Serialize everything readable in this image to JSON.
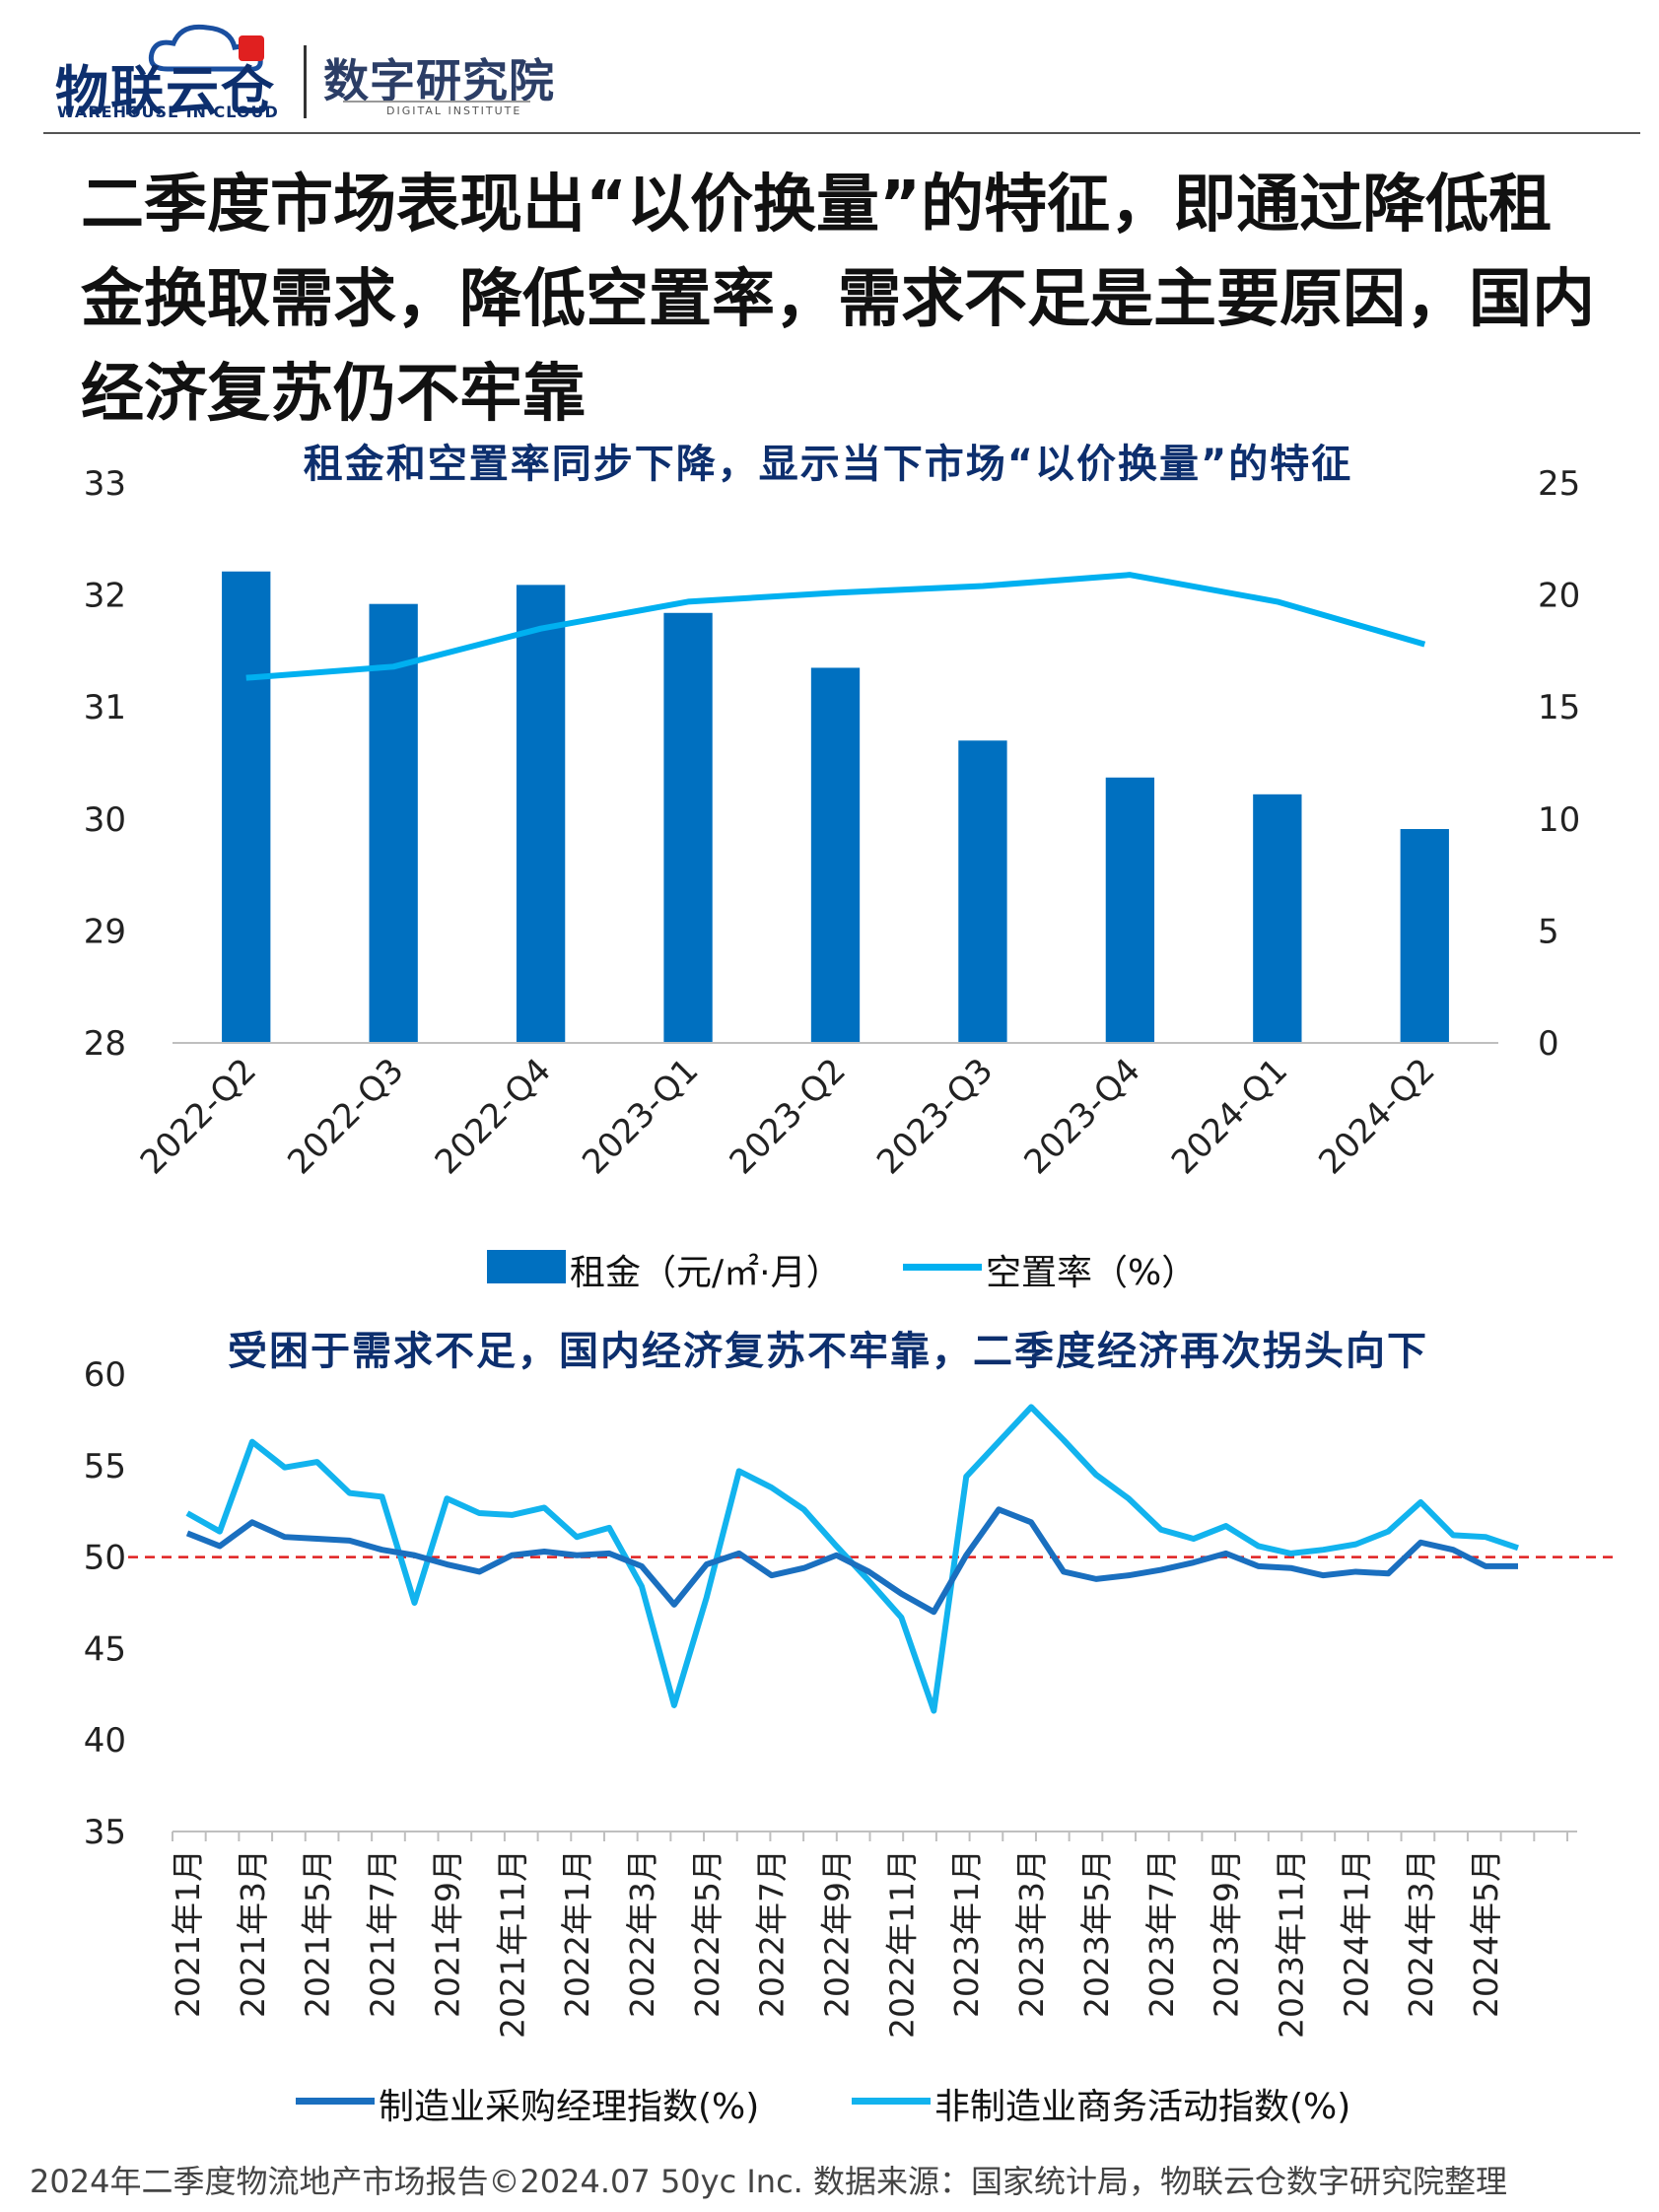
{
  "header": {
    "logo_main": "物联云仓",
    "logo_sub": "WAREHOUSE IN CLOUD",
    "logo2_main": "数字研究院",
    "logo2_sub": "DIGITAL INSTITUTE"
  },
  "headline": "二季度市场表现出“以价换量”的特征，即通过降低租金换取需求，降低空置率，需求不足是主要原因，国内经济复苏仍不牢靠",
  "footer": "2024年二季度物流地产市场报告©2024.07 50yc Inc. 数据来源：国家统计局，物联云仓数字研究院整理",
  "colors": {
    "bar": "#0070c0",
    "vacancy_line": "#00b0f0",
    "pmi_line": "#1a6fbf",
    "nonmfg_line": "#12b3ee",
    "reference_line": "#e02020",
    "title": "#0d2f6e"
  },
  "chart_data": [
    {
      "type": "bar",
      "title": "租金和空置率同步下降，显示当下市场“以价换量”的特征",
      "categories": [
        "2022-Q2",
        "2022-Q3",
        "2022-Q4",
        "2023-Q1",
        "2023-Q2",
        "2023-Q3",
        "2023-Q4",
        "2024-Q1",
        "2024-Q2"
      ],
      "series": [
        {
          "name": "租金（元/㎡·月）",
          "axis": "left",
          "kind": "bar",
          "values": [
            32.21,
            31.92,
            32.09,
            31.84,
            31.35,
            30.7,
            30.37,
            30.22,
            29.91
          ]
        },
        {
          "name": "空置率（%）",
          "axis": "right",
          "kind": "line",
          "values": [
            16.3,
            16.8,
            18.5,
            19.7,
            20.1,
            20.4,
            20.9,
            19.7,
            17.8
          ]
        }
      ],
      "ylim": [
        28,
        33
      ],
      "yticks": [
        28,
        29,
        30,
        31,
        32,
        33
      ],
      "y2lim": [
        0,
        25
      ],
      "y2ticks": [
        0,
        5,
        10,
        15,
        20,
        25
      ],
      "legend_position": "bottom",
      "grid": false
    },
    {
      "type": "line",
      "title": "受困于需求不足，国内经济复苏不牢靠，二季度经济再次拐头向下",
      "x": [
        "2021年1月",
        "2021年2月",
        "2021年3月",
        "2021年4月",
        "2021年5月",
        "2021年6月",
        "2021年7月",
        "2021年8月",
        "2021年9月",
        "2021年10月",
        "2021年11月",
        "2021年12月",
        "2022年1月",
        "2022年2月",
        "2022年3月",
        "2022年4月",
        "2022年5月",
        "2022年6月",
        "2022年7月",
        "2022年8月",
        "2022年9月",
        "2022年10月",
        "2022年11月",
        "2022年12月",
        "2023年1月",
        "2023年2月",
        "2023年3月",
        "2023年4月",
        "2023年5月",
        "2023年6月",
        "2023年7月",
        "2023年8月",
        "2023年9月",
        "2023年10月",
        "2023年11月",
        "2023年12月",
        "2024年1月",
        "2024年2月",
        "2024年3月",
        "2024年4月",
        "2024年5月",
        "2024年6月"
      ],
      "x_tick_labels": [
        "2021年1月",
        "2021年3月",
        "2021年5月",
        "2021年7月",
        "2021年9月",
        "2021年11月",
        "2022年1月",
        "2022年3月",
        "2022年5月",
        "2022年7月",
        "2022年9月",
        "2022年11月",
        "2023年1月",
        "2023年3月",
        "2023年5月",
        "2023年7月",
        "2023年9月",
        "2023年11月",
        "2024年1月",
        "2024年3月",
        "2024年5月"
      ],
      "series": [
        {
          "name": "制造业采购经理指数(%)",
          "values": [
            51.3,
            50.6,
            51.9,
            51.1,
            51.0,
            50.9,
            50.4,
            50.1,
            49.6,
            49.2,
            50.1,
            50.3,
            50.1,
            50.2,
            49.5,
            47.4,
            49.6,
            50.2,
            49.0,
            49.4,
            50.1,
            49.2,
            48.0,
            47.0,
            50.1,
            52.6,
            51.9,
            49.2,
            48.8,
            49.0,
            49.3,
            49.7,
            50.2,
            49.5,
            49.4,
            49.0,
            49.2,
            49.1,
            50.8,
            50.4,
            49.5,
            49.5
          ]
        },
        {
          "name": "非制造业商务活动指数(%)",
          "values": [
            52.4,
            51.4,
            56.3,
            54.9,
            55.2,
            53.5,
            53.3,
            47.5,
            53.2,
            52.4,
            52.3,
            52.7,
            51.1,
            51.6,
            48.4,
            41.9,
            47.8,
            54.7,
            53.8,
            52.6,
            50.6,
            48.7,
            46.7,
            41.6,
            54.4,
            56.3,
            58.2,
            56.4,
            54.5,
            53.2,
            51.5,
            51.0,
            51.7,
            50.6,
            50.2,
            50.4,
            50.7,
            51.4,
            53.0,
            51.2,
            51.1,
            50.5
          ]
        }
      ],
      "reference_line": {
        "y": 50,
        "style": "dashed"
      },
      "ylim": [
        35,
        60
      ],
      "yticks": [
        35,
        40,
        45,
        50,
        55,
        60
      ],
      "legend_position": "bottom",
      "grid": false
    }
  ]
}
